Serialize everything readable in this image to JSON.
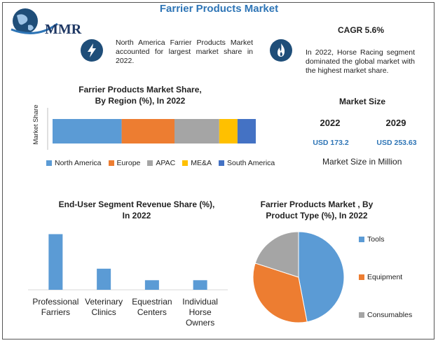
{
  "header": {
    "title": "Farrier Products Market",
    "logo_text": "MMR"
  },
  "notes": {
    "left": "North America Farrier Products Market accounted for largest market share in 2022.",
    "cagr": "CAGR 5.6%",
    "right": "In 2022, Horse Racing segment dominated the global market with the highest market share."
  },
  "market_size": {
    "title": "Market Size",
    "year1": "2022",
    "year2": "2029",
    "value1": "USD 173.2",
    "value2": "USD 253.63",
    "unit": "Market Size in Million"
  },
  "colors": {
    "blue": "#5b9bd5",
    "orange": "#ed7d31",
    "gray": "#a5a5a5",
    "yellow": "#ffc000",
    "darkblue": "#4472c4",
    "accent": "#2e75b6"
  },
  "chart_data": [
    {
      "type": "bar",
      "orientation": "stacked-horizontal",
      "title": "Farrier Products Market Share, By Region (%), In 2022",
      "title_lines": [
        "Farrier Products Market Share,",
        "By Region (%), In 2022"
      ],
      "ylabel": "Market Share",
      "series": [
        {
          "name": "North America",
          "value": 34
        },
        {
          "name": "Europe",
          "value": 26
        },
        {
          "name": "APAC",
          "value": 22
        },
        {
          "name": "ME&A",
          "value": 9
        },
        {
          "name": "South America",
          "value": 9
        }
      ],
      "legend_position": "bottom"
    },
    {
      "type": "bar",
      "title": "End-User Segment Revenue Share (%), In 2022",
      "title_lines": [
        "End-User Segment Revenue Share (%),",
        "In 2022"
      ],
      "categories": [
        "Professional Farriers",
        "Veterinary Clinics",
        "Equestrian Centers",
        "Individual Horse Owners"
      ],
      "category_lines": [
        [
          "Professional",
          "Farriers"
        ],
        [
          "Veterinary",
          "Clinics"
        ],
        [
          "Equestrian",
          "Centers"
        ],
        [
          "Individual",
          "Horse",
          "Owners"
        ]
      ],
      "values": [
        58,
        22,
        10,
        10
      ],
      "ylim": [
        0,
        62
      ],
      "grid": false
    },
    {
      "type": "pie",
      "title": "Farrier Products Market , By Product Type (%), In 2022",
      "title_lines": [
        "Farrier Products Market , By",
        "Product Type (%), In 2022"
      ],
      "series": [
        {
          "name": "Tools",
          "value": 47
        },
        {
          "name": "Equipment",
          "value": 33
        },
        {
          "name": "Consumables",
          "value": 20
        }
      ],
      "legend_position": "right"
    }
  ]
}
